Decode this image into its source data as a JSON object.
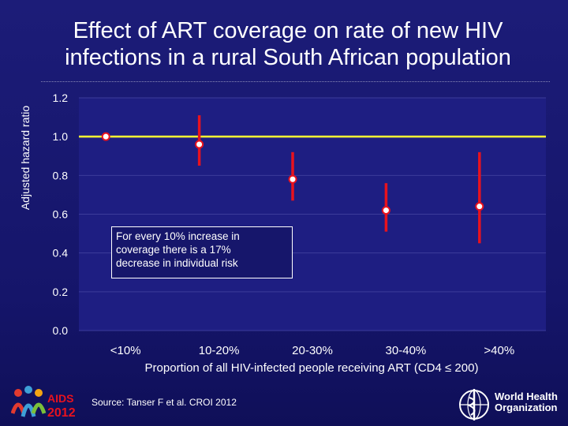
{
  "slide": {
    "title_line1": "Effect of ART coverage on rate of new HIV",
    "title_line2": "infections in a rural South African population",
    "source": "Source: Tanser F et al. CROI 2012",
    "annotation_line1": "For every 10% increase in",
    "annotation_line2": "coverage there is a 17%",
    "annotation_line3": "decrease in individual risk",
    "logo_left": "AIDS 2012",
    "logo_right_line1": "World Health",
    "logo_right_line2": "Organization"
  },
  "chart_data": {
    "type": "scatter",
    "title": "Effect of ART coverage on rate of new HIV infections in a rural South African population",
    "xlabel": "Proportion of all HIV-infected people receiving ART (CD4 ≤ 200)",
    "ylabel": "Adjusted hazard ratio",
    "categories": [
      "<10%",
      "10-20%",
      "20-30%",
      "30-40%",
      ">40%"
    ],
    "values": [
      1.0,
      0.96,
      0.78,
      0.62,
      0.64
    ],
    "ci_lower": [
      null,
      0.85,
      0.67,
      0.51,
      0.45
    ],
    "ci_upper": [
      null,
      1.11,
      0.92,
      0.76,
      0.92
    ],
    "yticks": [
      "0.0",
      "0.2",
      "0.4",
      "0.6",
      "0.8",
      "1.0",
      "1.2"
    ],
    "ylim": [
      0,
      1.2
    ],
    "reference_line": 1.0,
    "grid": true,
    "colors": {
      "plot_bg": "#1e1e82",
      "grid": "#3c3c9a",
      "reference": "#ffff33",
      "error_bar": "#e8121e",
      "marker_fill": "#ffffff",
      "marker_edge": "#e8121e"
    }
  }
}
